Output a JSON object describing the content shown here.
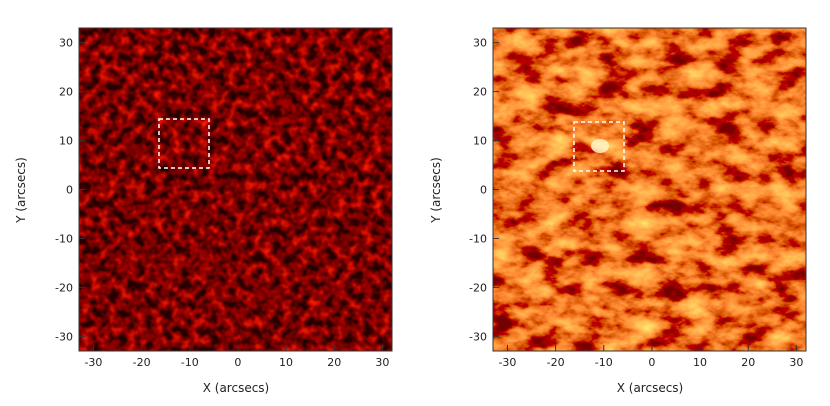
{
  "figure": {
    "panels": [
      {
        "id": "left",
        "x_axis_label": "X (arcsecs)",
        "y_axis_label": "Y (arcsecs)",
        "x_range": [
          -33,
          32
        ],
        "y_range": [
          -33,
          33
        ],
        "x_ticks": [
          "-30",
          "-20",
          "-10",
          "0",
          "10",
          "20",
          "30"
        ],
        "y_ticks": [
          "30",
          "20",
          "10",
          "0",
          "-10",
          "-20",
          "-30"
        ],
        "colormap": "dark-red granulation",
        "highlight_box": {
          "x": [
            -15,
            -5
          ],
          "y": [
            4,
            14
          ],
          "style": "dashed white"
        }
      },
      {
        "id": "right",
        "x_axis_label": "X (arcsecs)",
        "y_axis_label": "Y (arcsecs)",
        "x_range": [
          -33,
          32
        ],
        "y_range": [
          -33,
          33
        ],
        "x_ticks": [
          "-30",
          "-20",
          "-10",
          "0",
          "10",
          "20",
          "30"
        ],
        "y_ticks": [
          "30",
          "20",
          "10",
          "0",
          "-10",
          "-20",
          "-30"
        ],
        "colormap": "bright red-orange fibrils",
        "highlight_box": {
          "x": [
            -15,
            -5
          ],
          "y": [
            4,
            14
          ],
          "style": "dashed white"
        }
      }
    ]
  }
}
